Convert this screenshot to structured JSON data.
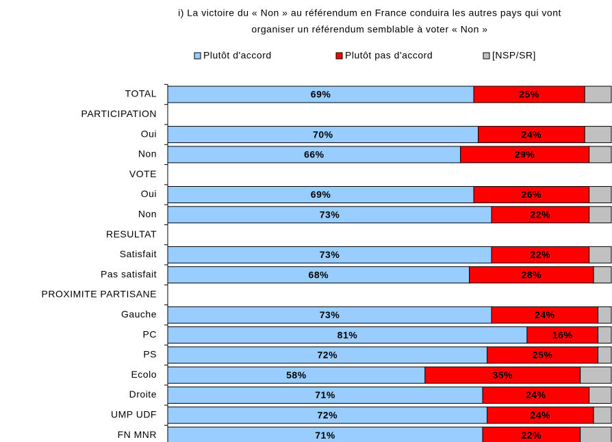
{
  "chart_data": {
    "type": "stacked_bar_horizontal",
    "title": [
      "i) La victoire du « Non » au référendum en France conduira les autres pays qui vont",
      "organiser un référendum semblable à voter « Non »"
    ],
    "categories": [
      "TOTAL",
      "PARTICIPATION",
      "Oui",
      "Non",
      "VOTE",
      "Oui",
      "Non",
      "RESULTAT",
      "Satisfait",
      "Pas satisfait",
      "PROXIMITE PARTISANE",
      "Gauche",
      "PC",
      "PS",
      "Ecolo",
      "Droite",
      "UMP UDF",
      "FN MNR"
    ],
    "xlim": [
      0,
      100
    ],
    "legend": "top",
    "series": [
      {
        "name": "Plutôt d'accord",
        "color": "#99ccff",
        "values": [
          69,
          null,
          70,
          66,
          null,
          69,
          73,
          null,
          73,
          68,
          null,
          73,
          81,
          72,
          58,
          71,
          72,
          71
        ],
        "value_labels": [
          "69%",
          null,
          "70%",
          "66%",
          null,
          "69%",
          "73%",
          null,
          "73%",
          "68%",
          null,
          "73%",
          "81%",
          "72%",
          "58%",
          "71%",
          "72%",
          "71%"
        ]
      },
      {
        "name": "Plutôt pas d'accord",
        "color": "#ff0000",
        "values": [
          25,
          null,
          24,
          29,
          null,
          26,
          22,
          null,
          22,
          28,
          null,
          24,
          16,
          25,
          35,
          24,
          24,
          22
        ],
        "value_labels": [
          "25%",
          null,
          "24%",
          "29%",
          null,
          "26%",
          "22%",
          null,
          "22%",
          "28%",
          null,
          "24%",
          "16%",
          "25%",
          "35%",
          "24%",
          "24%",
          "22%"
        ]
      },
      {
        "name": "[NSP/SR]",
        "color": "#c0c0c0",
        "values": [
          6,
          null,
          6,
          5,
          null,
          5,
          5,
          null,
          5,
          4,
          null,
          3,
          3,
          3,
          7,
          5,
          4,
          7
        ]
      }
    ]
  }
}
